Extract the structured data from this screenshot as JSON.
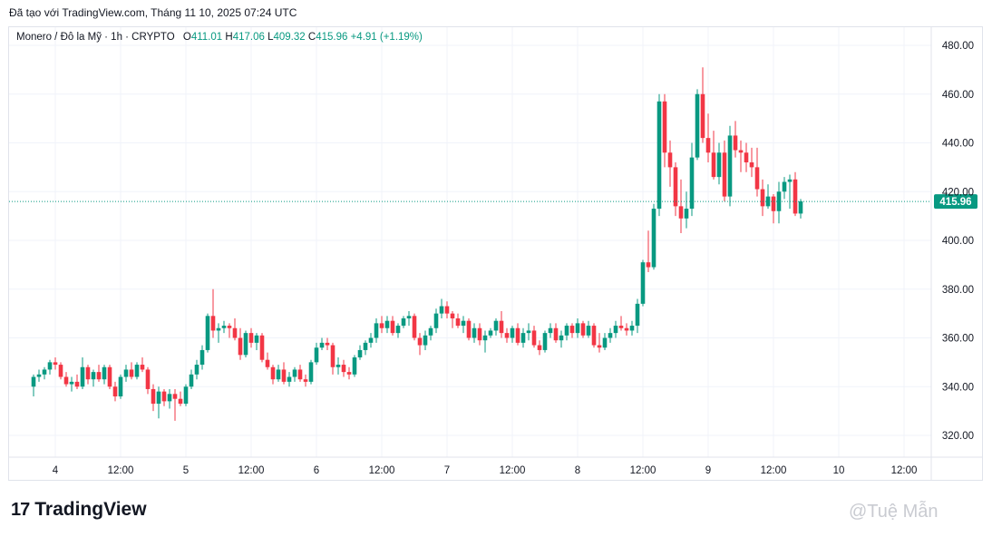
{
  "caption": "Đã tạo với TradingView.com, Tháng 11 10, 2025 07:24 UTC",
  "legend": {
    "symbol": "Monero / Đô la Mỹ · 1h · CRYPTO",
    "o_label": "O",
    "o_value": "411.01",
    "h_label": "H",
    "h_value": "417.06",
    "l_label": "L",
    "l_value": "409.32",
    "c_label": "C",
    "c_value": "415.96",
    "change": "+4.91 (+1.19%)"
  },
  "colors": {
    "up": "#089981",
    "down": "#f23645",
    "grid": "#f0f3fa",
    "text": "#131722",
    "price_tag": "#089981"
  },
  "brand": {
    "logo_mark": "17",
    "logo_text": "TradingView"
  },
  "watermark": "@Tuệ Mẫn",
  "chart_data": {
    "type": "candlestick",
    "title": "Monero / Đô la Mỹ · 1h · CRYPTO",
    "ylim": [
      310,
      488
    ],
    "y_ticks": [
      "480.00",
      "460.00",
      "440.00",
      "420.00",
      "400.00",
      "380.00",
      "360.00",
      "340.00",
      "320.00"
    ],
    "y_tick_values": [
      480,
      460,
      440,
      420,
      400,
      380,
      360,
      340,
      320
    ],
    "x_ticks": [
      "4",
      "12:00",
      "5",
      "12:00",
      "6",
      "12:00",
      "7",
      "12:00",
      "8",
      "12:00",
      "9",
      "12:00",
      "10",
      "12:00"
    ],
    "x_tick_hours": [
      0,
      12,
      24,
      36,
      48,
      60,
      72,
      84,
      96,
      108,
      120,
      132,
      144,
      156
    ],
    "first_candle_hour": -4,
    "last_price": 415.96,
    "last_price_label": "415.96",
    "candles": [
      [
        340,
        345,
        336,
        344
      ],
      [
        344,
        347,
        342,
        345
      ],
      [
        345,
        348,
        343,
        347
      ],
      [
        347,
        351,
        345,
        350
      ],
      [
        350,
        352,
        347,
        349
      ],
      [
        349,
        350,
        343,
        344
      ],
      [
        344,
        346,
        340,
        341
      ],
      [
        341,
        344,
        338,
        342
      ],
      [
        342,
        345,
        339,
        340
      ],
      [
        340,
        352,
        339,
        348
      ],
      [
        348,
        349,
        341,
        343
      ],
      [
        343,
        347,
        340,
        346
      ],
      [
        346,
        349,
        342,
        343
      ],
      [
        343,
        349,
        341,
        348
      ],
      [
        348,
        349,
        339,
        340
      ],
      [
        340,
        342,
        334,
        336
      ],
      [
        336,
        345,
        335,
        344
      ],
      [
        344,
        349,
        342,
        347
      ],
      [
        347,
        350,
        343,
        344
      ],
      [
        344,
        350,
        343,
        349
      ],
      [
        349,
        352,
        346,
        347
      ],
      [
        347,
        348,
        337,
        339
      ],
      [
        339,
        341,
        330,
        333
      ],
      [
        333,
        340,
        327,
        338
      ],
      [
        338,
        339,
        332,
        334
      ],
      [
        334,
        339,
        331,
        337
      ],
      [
        337,
        339,
        326,
        335
      ],
      [
        335,
        338,
        332,
        333
      ],
      [
        333,
        341,
        332,
        340
      ],
      [
        340,
        347,
        339,
        345
      ],
      [
        345,
        351,
        343,
        349
      ],
      [
        349,
        357,
        347,
        355
      ],
      [
        355,
        370,
        354,
        369
      ],
      [
        369,
        380,
        360,
        363
      ],
      [
        363,
        366,
        358,
        364
      ],
      [
        364,
        367,
        362,
        365
      ],
      [
        365,
        366,
        360,
        364
      ],
      [
        364,
        368,
        359,
        360
      ],
      [
        360,
        364,
        351,
        353
      ],
      [
        353,
        363,
        352,
        362
      ],
      [
        362,
        364,
        356,
        358
      ],
      [
        358,
        362,
        355,
        361
      ],
      [
        361,
        362,
        350,
        351
      ],
      [
        351,
        354,
        347,
        348
      ],
      [
        348,
        349,
        341,
        343
      ],
      [
        343,
        349,
        342,
        347
      ],
      [
        347,
        350,
        341,
        342
      ],
      [
        342,
        346,
        340,
        344
      ],
      [
        344,
        348,
        342,
        347
      ],
      [
        347,
        349,
        342,
        343
      ],
      [
        343,
        345,
        340,
        342
      ],
      [
        342,
        351,
        341,
        350
      ],
      [
        350,
        358,
        349,
        356
      ],
      [
        356,
        360,
        355,
        358
      ],
      [
        358,
        360,
        355,
        357
      ],
      [
        357,
        358,
        345,
        348
      ],
      [
        348,
        352,
        345,
        349
      ],
      [
        349,
        351,
        344,
        346
      ],
      [
        346,
        348,
        343,
        345
      ],
      [
        345,
        353,
        344,
        352
      ],
      [
        352,
        357,
        351,
        355
      ],
      [
        355,
        359,
        353,
        358
      ],
      [
        358,
        362,
        356,
        360
      ],
      [
        360,
        368,
        358,
        366
      ],
      [
        366,
        369,
        362,
        364
      ],
      [
        364,
        369,
        362,
        367
      ],
      [
        367,
        369,
        361,
        362
      ],
      [
        362,
        366,
        360,
        365
      ],
      [
        365,
        369,
        364,
        368
      ],
      [
        368,
        371,
        365,
        369
      ],
      [
        369,
        370,
        359,
        360
      ],
      [
        360,
        362,
        353,
        357
      ],
      [
        357,
        363,
        355,
        361
      ],
      [
        361,
        365,
        359,
        364
      ],
      [
        364,
        372,
        362,
        370
      ],
      [
        370,
        376,
        368,
        373
      ],
      [
        373,
        375,
        368,
        370
      ],
      [
        370,
        371,
        364,
        368
      ],
      [
        368,
        370,
        364,
        365
      ],
      [
        365,
        369,
        362,
        367
      ],
      [
        367,
        368,
        359,
        360
      ],
      [
        360,
        366,
        358,
        364
      ],
      [
        364,
        366,
        357,
        359
      ],
      [
        359,
        363,
        354,
        361
      ],
      [
        361,
        364,
        360,
        363
      ],
      [
        363,
        368,
        361,
        367
      ],
      [
        367,
        371,
        360,
        362
      ],
      [
        362,
        364,
        358,
        360
      ],
      [
        360,
        365,
        358,
        364
      ],
      [
        364,
        366,
        357,
        358
      ],
      [
        358,
        364,
        356,
        362
      ],
      [
        362,
        366,
        359,
        363
      ],
      [
        363,
        365,
        356,
        357
      ],
      [
        357,
        359,
        353,
        355
      ],
      [
        355,
        363,
        354,
        362
      ],
      [
        362,
        366,
        360,
        364
      ],
      [
        364,
        366,
        358,
        359
      ],
      [
        359,
        363,
        356,
        361
      ],
      [
        361,
        366,
        359,
        365
      ],
      [
        365,
        366,
        360,
        362
      ],
      [
        362,
        368,
        360,
        366
      ],
      [
        366,
        367,
        360,
        361
      ],
      [
        361,
        367,
        360,
        365
      ],
      [
        365,
        366,
        356,
        357
      ],
      [
        357,
        362,
        354,
        356
      ],
      [
        356,
        362,
        355,
        360
      ],
      [
        360,
        364,
        358,
        362
      ],
      [
        362,
        367,
        360,
        365
      ],
      [
        365,
        369,
        363,
        364
      ],
      [
        364,
        366,
        361,
        363
      ],
      [
        363,
        367,
        361,
        365
      ],
      [
        365,
        376,
        362,
        374
      ],
      [
        374,
        392,
        373,
        391
      ],
      [
        391,
        404,
        387,
        389
      ],
      [
        389,
        415,
        388,
        413
      ],
      [
        413,
        460,
        410,
        457
      ],
      [
        457,
        460,
        430,
        436
      ],
      [
        436,
        441,
        422,
        430
      ],
      [
        430,
        432,
        410,
        414
      ],
      [
        414,
        425,
        403,
        409
      ],
      [
        409,
        420,
        405,
        413
      ],
      [
        413,
        440,
        410,
        434
      ],
      [
        434,
        462,
        433,
        460
      ],
      [
        460,
        471,
        440,
        442
      ],
      [
        442,
        452,
        432,
        436
      ],
      [
        436,
        445,
        425,
        426
      ],
      [
        426,
        440,
        423,
        436
      ],
      [
        436,
        441,
        416,
        418
      ],
      [
        418,
        447,
        414,
        443
      ],
      [
        443,
        449,
        434,
        437
      ],
      [
        437,
        441,
        428,
        436
      ],
      [
        436,
        440,
        428,
        432
      ],
      [
        432,
        438,
        426,
        430
      ],
      [
        430,
        438,
        418,
        421
      ],
      [
        421,
        425,
        410,
        414
      ],
      [
        414,
        423,
        413,
        418
      ],
      [
        418,
        419,
        407,
        412
      ],
      [
        412,
        424,
        407,
        420
      ],
      [
        420,
        426,
        417,
        424
      ],
      [
        424,
        427,
        413,
        425
      ],
      [
        425,
        428,
        410,
        411
      ],
      [
        411,
        417,
        409,
        416
      ]
    ]
  }
}
